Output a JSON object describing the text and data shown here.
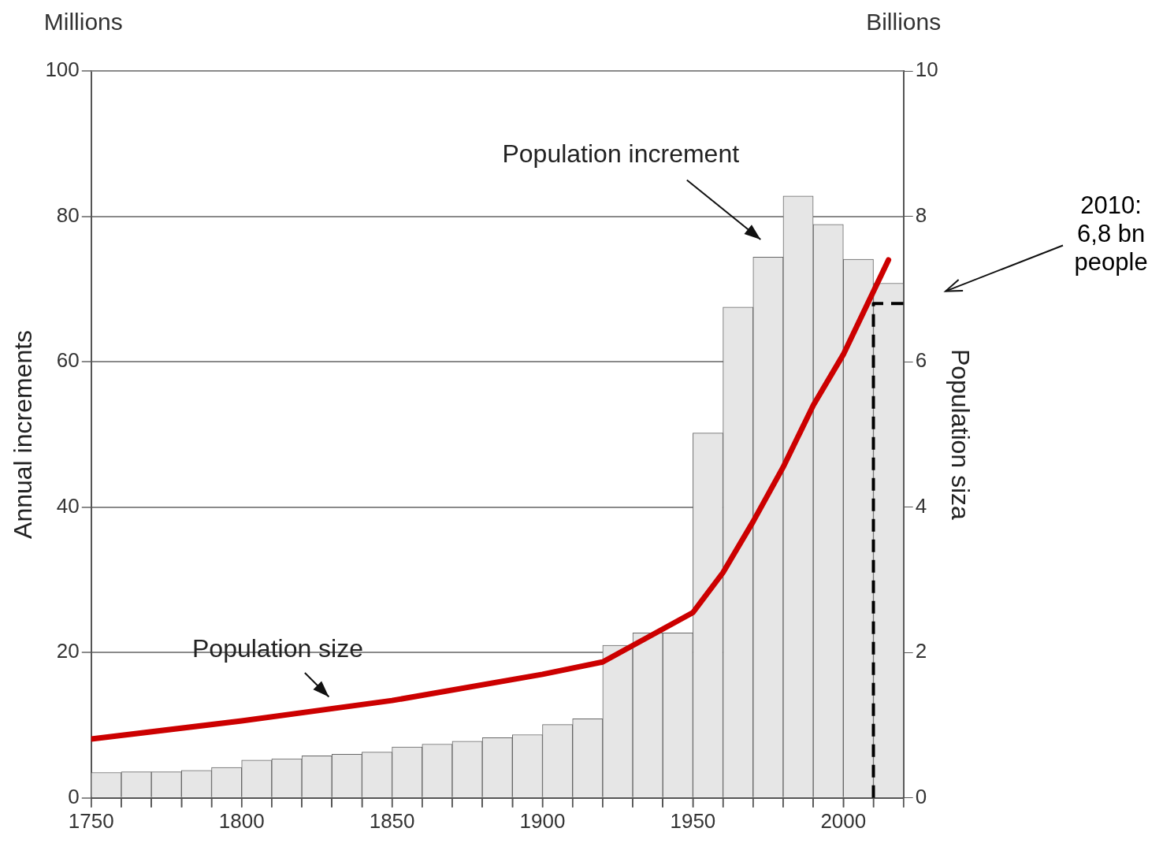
{
  "chart_data": {
    "type": "histogram",
    "ylabel": "Annual increments",
    "y2label": "Population siza",
    "bins": [
      1750,
      1760,
      1770,
      1780,
      1790,
      1800,
      1810,
      1820,
      1830,
      1840,
      1850,
      1860,
      1870,
      1880,
      1890,
      1900,
      1910,
      1920,
      1930,
      1940,
      1950,
      1960,
      1970,
      1980,
      1990,
      2000,
      2010,
      2020
    ],
    "values": [
      3.5,
      3.6,
      3.6,
      3.8,
      4.2,
      5.2,
      5.4,
      5.8,
      6.0,
      6.3,
      7.0,
      7.4,
      7.8,
      8.3,
      8.7,
      10.1,
      10.9,
      21.0,
      22.7,
      22.7,
      50.2,
      67.5,
      74.4,
      82.8,
      78.9,
      74.1,
      70.8
    ],
    "color": "#e6e6e6",
    "series": [
      {
        "type": "line",
        "axis": "y2",
        "color": "#cc0000",
        "x": [
          1750,
          1800,
          1850,
          1900,
          1920,
          1950,
          1960,
          1970,
          1980,
          1990,
          2000,
          2015
        ],
        "values": [
          0.81,
          1.06,
          1.34,
          1.7,
          1.87,
          2.55,
          3.1,
          3.8,
          4.55,
          5.4,
          6.1,
          7.4
        ]
      },
      {
        "type": "line",
        "axis": "y2",
        "color": "#000000",
        "line_style": "dashed",
        "x": [
          2010,
          2010,
          2020
        ],
        "values": [
          0,
          6.8,
          6.8
        ]
      }
    ],
    "xlim": [
      1750,
      2020
    ],
    "xticks": [
      1750,
      {
        "value": 1760,
        "label": null
      },
      {
        "value": 1770,
        "label": null
      },
      {
        "value": 1780,
        "label": null
      },
      {
        "value": 1790,
        "label": null
      },
      1800,
      {
        "value": 1810,
        "label": null
      },
      {
        "value": 1820,
        "label": null
      },
      {
        "value": 1830,
        "label": null
      },
      {
        "value": 1840,
        "label": null
      },
      1850,
      {
        "value": 1860,
        "label": null
      },
      {
        "value": 1870,
        "label": null
      },
      {
        "value": 1880,
        "label": null
      },
      {
        "value": 1890,
        "label": null
      },
      1900,
      {
        "value": 1910,
        "label": null
      },
      {
        "value": 1920,
        "label": null
      },
      {
        "value": 1930,
        "label": null
      },
      {
        "value": 1940,
        "label": null
      },
      1950,
      {
        "value": 1960,
        "label": null
      },
      {
        "value": 1970,
        "label": null
      },
      {
        "value": 1980,
        "label": null
      },
      {
        "value": 1990,
        "label": null
      },
      2000,
      {
        "value": 2010,
        "label": null
      },
      {
        "value": 2020,
        "label": null
      }
    ],
    "ylim": [
      0,
      100
    ],
    "yticks": [
      0,
      20,
      40,
      60,
      80,
      100
    ],
    "y2lim": [
      0,
      10
    ],
    "y2ticks": [
      0,
      2,
      4,
      6,
      8,
      10
    ],
    "grid": "y",
    "legend": false,
    "marker": "none",
    "line_style": "solid",
    "annotations": [
      "Millions",
      "Billions",
      "Population increment",
      "Population size",
      "2010: 6,8 bn people"
    ]
  }
}
